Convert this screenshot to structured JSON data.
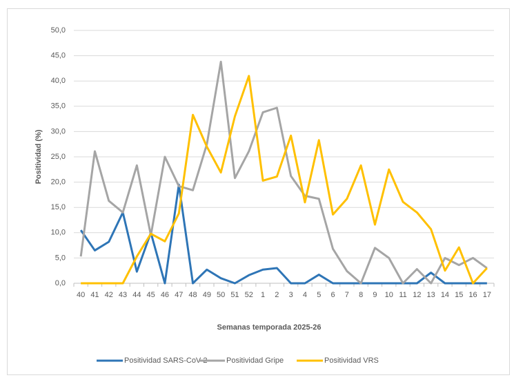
{
  "chart_data": {
    "type": "line",
    "x_label": "Semanas temporada 2025-26",
    "y_label": "Positividad (%)",
    "categories": [
      "40",
      "41",
      "42",
      "43",
      "44",
      "45",
      "46",
      "47",
      "48",
      "49",
      "50",
      "51",
      "52",
      "1",
      "2",
      "3",
      "4",
      "5",
      "6",
      "7",
      "8",
      "9",
      "10",
      "11",
      "12",
      "13",
      "14",
      "15",
      "16",
      "17"
    ],
    "series": [
      {
        "name": "Positividad SARS-CoV-2",
        "color": "#2e75b6",
        "values": [
          10.5,
          6.5,
          8.2,
          14,
          2.3,
          10,
          0,
          19.5,
          0,
          2.7,
          1,
          0,
          1.6,
          2.7,
          3,
          0,
          0,
          1.7,
          0,
          0,
          0,
          0,
          0,
          0,
          0,
          2.1,
          0,
          0,
          0,
          0
        ]
      },
      {
        "name": "Positividad Gripe",
        "color": "#a5a5a5",
        "values": [
          5.3,
          26.1,
          16.3,
          14,
          23.3,
          9.5,
          25,
          19.2,
          18.4,
          27.5,
          43.8,
          20.8,
          26.1,
          33.8,
          34.7,
          21.2,
          17.3,
          16.7,
          6.8,
          2.4,
          0,
          7,
          5,
          0,
          2.8,
          0,
          5,
          3.6,
          5,
          3
        ]
      },
      {
        "name": "Positividad VRS",
        "color": "#ffc000",
        "values": [
          0,
          0,
          0,
          0,
          5.3,
          9.8,
          8.3,
          13.8,
          33.3,
          27,
          21.9,
          33,
          41,
          20.3,
          21.1,
          29.2,
          16,
          28.3,
          13.6,
          16.7,
          23.3,
          11.6,
          22.5,
          16.1,
          14,
          10.7,
          2.5,
          7.1,
          0,
          3
        ]
      }
    ],
    "ylim": [
      0,
      50
    ],
    "yticks": [
      {
        "value": 0,
        "label": "0,0"
      },
      {
        "value": 5,
        "label": "5,0"
      },
      {
        "value": 10,
        "label": "10,0"
      },
      {
        "value": 15,
        "label": "15,0"
      },
      {
        "value": 20,
        "label": "20,0"
      },
      {
        "value": 25,
        "label": "25,0"
      },
      {
        "value": 30,
        "label": "30,0"
      },
      {
        "value": 35,
        "label": "35,0"
      },
      {
        "value": 40,
        "label": "40,0"
      },
      {
        "value": 45,
        "label": "45,0"
      },
      {
        "value": 50,
        "label": "50,0"
      }
    ],
    "grid": true,
    "legend": "bottom"
  }
}
